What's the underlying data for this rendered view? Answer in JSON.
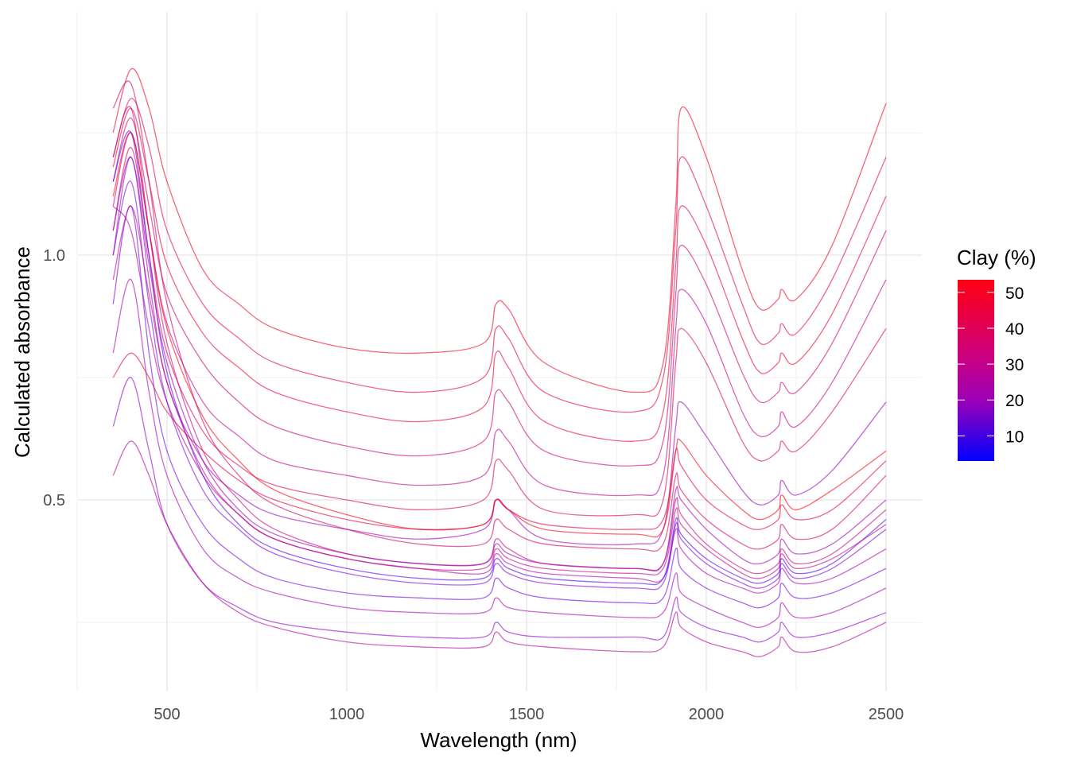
{
  "chart_data": {
    "type": "line",
    "title": "",
    "xlabel": "Wavelength (nm)",
    "ylabel": "Calculated absorbance",
    "xlim": [
      252,
      2600
    ],
    "ylim": [
      0.11,
      1.5
    ],
    "x_ticks": [
      500,
      1000,
      1500,
      2000,
      2500
    ],
    "x_tick_labels": [
      "500",
      "1000",
      "1500",
      "2000",
      "2500"
    ],
    "y_ticks": [
      0.5,
      1.0
    ],
    "y_tick_labels": [
      "0.5",
      "1.0"
    ],
    "grid": true,
    "legend": {
      "title": "Clay (%)",
      "placement": "right",
      "type": "colorbar",
      "range": [
        3,
        53.5
      ],
      "ticks": [
        10,
        20,
        30,
        40,
        50
      ],
      "tick_labels": [
        "10",
        "20",
        "30",
        "40",
        "50"
      ],
      "low_color": "#0000FF",
      "high_color": "#FF0000"
    },
    "x": [
      350,
      400,
      450,
      500,
      600,
      700,
      800,
      1000,
      1200,
      1380,
      1415,
      1450,
      1550,
      1800,
      1880,
      1915,
      1930,
      2000,
      2100,
      2150,
      2200,
      2210,
      2250,
      2350,
      2500
    ],
    "series": [
      {
        "clay": 45,
        "values": [
          1.25,
          1.38,
          1.3,
          1.15,
          0.97,
          0.9,
          0.85,
          0.81,
          0.8,
          0.82,
          0.9,
          0.89,
          0.78,
          0.72,
          0.78,
          1.1,
          1.3,
          1.2,
          0.97,
          0.89,
          0.91,
          0.93,
          0.91,
          1.02,
          1.31
        ]
      },
      {
        "clay": 38,
        "values": [
          1.2,
          1.32,
          1.22,
          1.05,
          0.9,
          0.83,
          0.78,
          0.74,
          0.72,
          0.75,
          0.85,
          0.83,
          0.72,
          0.68,
          0.75,
          1.05,
          1.2,
          1.1,
          0.9,
          0.82,
          0.84,
          0.86,
          0.84,
          0.95,
          1.2
        ]
      },
      {
        "clay": 42,
        "values": [
          1.18,
          1.3,
          1.15,
          0.98,
          0.84,
          0.77,
          0.72,
          0.68,
          0.66,
          0.69,
          0.8,
          0.77,
          0.66,
          0.62,
          0.68,
          0.98,
          1.1,
          1.02,
          0.83,
          0.76,
          0.78,
          0.8,
          0.78,
          0.88,
          1.12
        ]
      },
      {
        "clay": 30,
        "values": [
          1.15,
          1.28,
          1.1,
          0.92,
          0.78,
          0.7,
          0.65,
          0.61,
          0.59,
          0.62,
          0.72,
          0.7,
          0.6,
          0.57,
          0.62,
          0.92,
          1.02,
          0.94,
          0.76,
          0.7,
          0.72,
          0.74,
          0.72,
          0.82,
          1.05
        ]
      },
      {
        "clay": 25,
        "values": [
          1.1,
          1.25,
          1.05,
          0.86,
          0.7,
          0.63,
          0.58,
          0.55,
          0.53,
          0.55,
          0.64,
          0.62,
          0.53,
          0.51,
          0.55,
          0.85,
          0.93,
          0.86,
          0.68,
          0.63,
          0.65,
          0.68,
          0.65,
          0.74,
          0.95
        ]
      },
      {
        "clay": 35,
        "values": [
          1.05,
          1.22,
          1.0,
          0.8,
          0.64,
          0.57,
          0.53,
          0.5,
          0.48,
          0.5,
          0.58,
          0.56,
          0.48,
          0.47,
          0.5,
          0.78,
          0.85,
          0.78,
          0.62,
          0.58,
          0.6,
          0.62,
          0.6,
          0.68,
          0.85
        ]
      },
      {
        "clay": 15,
        "values": [
          1.0,
          1.2,
          0.95,
          0.74,
          0.58,
          0.51,
          0.47,
          0.44,
          0.42,
          0.44,
          0.5,
          0.48,
          0.42,
          0.41,
          0.44,
          0.65,
          0.7,
          0.63,
          0.52,
          0.49,
          0.51,
          0.54,
          0.51,
          0.56,
          0.7
        ]
      },
      {
        "clay": 50,
        "values": [
          1.12,
          1.25,
          1.05,
          0.85,
          0.67,
          0.58,
          0.52,
          0.47,
          0.44,
          0.45,
          0.5,
          0.48,
          0.44,
          0.43,
          0.44,
          0.6,
          0.62,
          0.55,
          0.48,
          0.46,
          0.48,
          0.51,
          0.48,
          0.52,
          0.6
        ]
      },
      {
        "clay": 20,
        "values": [
          1.1,
          1.05,
          0.85,
          0.7,
          0.55,
          0.47,
          0.42,
          0.38,
          0.36,
          0.35,
          0.39,
          0.37,
          0.35,
          0.34,
          0.34,
          0.44,
          0.4,
          0.35,
          0.32,
          0.31,
          0.33,
          0.36,
          0.33,
          0.34,
          0.4
        ]
      },
      {
        "clay": 10,
        "values": [
          1.0,
          1.15,
          0.9,
          0.7,
          0.52,
          0.44,
          0.39,
          0.35,
          0.33,
          0.33,
          0.37,
          0.35,
          0.33,
          0.32,
          0.33,
          0.45,
          0.42,
          0.37,
          0.33,
          0.32,
          0.34,
          0.37,
          0.34,
          0.36,
          0.44
        ]
      },
      {
        "clay": 28,
        "values": [
          1.2,
          1.3,
          1.05,
          0.82,
          0.6,
          0.5,
          0.44,
          0.39,
          0.37,
          0.37,
          0.42,
          0.4,
          0.37,
          0.36,
          0.37,
          0.5,
          0.47,
          0.41,
          0.36,
          0.35,
          0.37,
          0.4,
          0.37,
          0.39,
          0.48
        ]
      },
      {
        "clay": 8,
        "values": [
          0.9,
          1.1,
          0.8,
          0.6,
          0.45,
          0.38,
          0.34,
          0.31,
          0.3,
          0.3,
          0.34,
          0.32,
          0.3,
          0.29,
          0.3,
          0.4,
          0.36,
          0.32,
          0.29,
          0.28,
          0.3,
          0.33,
          0.3,
          0.31,
          0.36
        ]
      },
      {
        "clay": 18,
        "values": [
          0.8,
          0.95,
          0.72,
          0.55,
          0.4,
          0.34,
          0.31,
          0.28,
          0.27,
          0.27,
          0.3,
          0.28,
          0.27,
          0.26,
          0.27,
          0.35,
          0.31,
          0.28,
          0.25,
          0.24,
          0.26,
          0.29,
          0.26,
          0.27,
          0.32
        ]
      },
      {
        "clay": 12,
        "values": [
          0.65,
          0.75,
          0.6,
          0.45,
          0.33,
          0.28,
          0.25,
          0.23,
          0.22,
          0.22,
          0.25,
          0.23,
          0.22,
          0.22,
          0.22,
          0.3,
          0.27,
          0.24,
          0.22,
          0.21,
          0.23,
          0.25,
          0.22,
          0.23,
          0.27
        ]
      },
      {
        "clay": 22,
        "values": [
          0.55,
          0.62,
          0.55,
          0.45,
          0.33,
          0.27,
          0.24,
          0.21,
          0.2,
          0.2,
          0.23,
          0.21,
          0.2,
          0.19,
          0.2,
          0.27,
          0.24,
          0.21,
          0.19,
          0.18,
          0.2,
          0.22,
          0.19,
          0.2,
          0.25
        ]
      },
      {
        "clay": 32,
        "values": [
          1.3,
          1.35,
          1.15,
          0.9,
          0.66,
          0.55,
          0.49,
          0.44,
          0.41,
          0.41,
          0.46,
          0.44,
          0.41,
          0.4,
          0.41,
          0.55,
          0.52,
          0.46,
          0.41,
          0.4,
          0.42,
          0.45,
          0.42,
          0.44,
          0.55
        ]
      },
      {
        "clay": 5,
        "values": [
          1.15,
          1.25,
          1.0,
          0.76,
          0.55,
          0.45,
          0.4,
          0.36,
          0.34,
          0.34,
          0.38,
          0.36,
          0.34,
          0.33,
          0.34,
          0.46,
          0.43,
          0.38,
          0.34,
          0.33,
          0.35,
          0.38,
          0.35,
          0.37,
          0.46
        ]
      },
      {
        "clay": 40,
        "values": [
          0.75,
          0.8,
          0.75,
          0.68,
          0.6,
          0.54,
          0.5,
          0.46,
          0.44,
          0.45,
          0.5,
          0.48,
          0.45,
          0.44,
          0.46,
          0.6,
          0.57,
          0.5,
          0.45,
          0.44,
          0.46,
          0.49,
          0.46,
          0.48,
          0.58
        ]
      },
      {
        "clay": 16,
        "values": [
          1.05,
          1.2,
          0.98,
          0.78,
          0.58,
          0.48,
          0.43,
          0.39,
          0.37,
          0.37,
          0.41,
          0.39,
          0.37,
          0.36,
          0.37,
          0.52,
          0.5,
          0.44,
          0.38,
          0.37,
          0.39,
          0.42,
          0.39,
          0.41,
          0.5
        ]
      },
      {
        "clay": 26,
        "values": [
          0.95,
          1.1,
          0.92,
          0.74,
          0.56,
          0.47,
          0.42,
          0.38,
          0.36,
          0.36,
          0.4,
          0.38,
          0.36,
          0.35,
          0.36,
          0.48,
          0.45,
          0.4,
          0.35,
          0.34,
          0.36,
          0.39,
          0.36,
          0.38,
          0.45
        ]
      }
    ]
  }
}
